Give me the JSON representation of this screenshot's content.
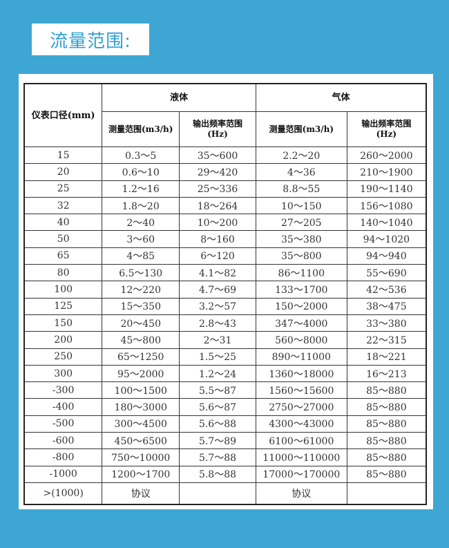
{
  "title": "流量范围:",
  "table": {
    "col_diameter": "仪表口径(mm)",
    "group_liquid": "液体",
    "group_gas": "气体",
    "sub_measure": "测量范围(m3/h)",
    "sub_freq_line1": "输出频率范围",
    "sub_freq_line2": "(Hz)",
    "rows": [
      [
        "15",
        "0.3～5",
        "35～600",
        "2.2～20",
        "260～2000"
      ],
      [
        "20",
        "0.6～10",
        "29～420",
        "4～36",
        "210～1900"
      ],
      [
        "25",
        "1.2～16",
        "25～336",
        "8.8～55",
        "190～1140"
      ],
      [
        "32",
        "1.8～20",
        "18～264",
        "10～150",
        "156～1080"
      ],
      [
        "40",
        "2～40",
        "10～200",
        "27～205",
        "140～1040"
      ],
      [
        "50",
        "3～60",
        "8～160",
        "35～380",
        "94～1020"
      ],
      [
        "65",
        "4～85",
        "6～120",
        "35～800",
        "94～940"
      ],
      [
        "80",
        "6.5～130",
        "4.1～82",
        "86～1100",
        "55～690"
      ],
      [
        "100",
        "12～220",
        "4.7～69",
        "133～1700",
        "42～536"
      ],
      [
        "125",
        "15～350",
        "3.2～57",
        "150～2000",
        "38～475"
      ],
      [
        "150",
        "20～450",
        "2.8～43",
        "347～4000",
        "33～380"
      ],
      [
        "200",
        "45～800",
        "2～31",
        "560～8000",
        "22～315"
      ],
      [
        "250",
        "65～1250",
        "1.5～25",
        "890～11000",
        "18～221"
      ],
      [
        "300",
        "95～2000",
        "1.2～24",
        "1360～18000",
        "16～213"
      ],
      [
        "-300",
        "100～1500",
        "5.5～87",
        "1560～15600",
        "85～880"
      ],
      [
        "-400",
        "180～3000",
        "5.6～87",
        "2750～27000",
        "85～880"
      ],
      [
        "-500",
        "300～4500",
        "5.6～88",
        "4300～43000",
        "85～880"
      ],
      [
        "-600",
        "450～6500",
        "5.7～89",
        "6100～61000",
        "85～880"
      ],
      [
        "-800",
        "750～10000",
        "5.7～88",
        "11000～110000",
        "85～880"
      ],
      [
        "-1000",
        "1200～1700",
        "5.8～88",
        "17000～170000",
        "85～880"
      ],
      [
        ">(1000)",
        "协议",
        "",
        "协议",
        ""
      ]
    ]
  }
}
